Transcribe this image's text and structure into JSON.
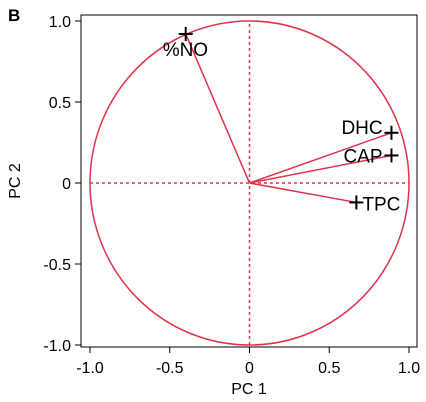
{
  "panel_label": "B",
  "chart_data": {
    "type": "scatter",
    "subtype": "pca-loading-plot",
    "xlabel": "PC 1",
    "ylabel": "PC 2",
    "xlim": [
      -1.0,
      1.0
    ],
    "ylim": [
      -1.0,
      1.0
    ],
    "x_ticks": [
      -1.0,
      -0.5,
      0,
      0.5,
      1.0
    ],
    "x_tick_labels": [
      "-1.0",
      "-0.5",
      "0",
      "0.5",
      "1.0"
    ],
    "y_ticks": [
      -1.0,
      -0.5,
      0,
      0.5,
      1.0
    ],
    "y_tick_labels": [
      "-1.0",
      "-0.5",
      "0",
      "0.5",
      "1.0"
    ],
    "unit_circle": true,
    "zero_reference_lines": "dashed",
    "color": "#e0334b",
    "points": [
      {
        "label": "%NO",
        "x": -0.4,
        "y": 0.92
      },
      {
        "label": "DHC",
        "x": 0.89,
        "y": 0.31
      },
      {
        "label": "CAP",
        "x": 0.89,
        "y": 0.17
      },
      {
        "label": "TPC",
        "x": 0.67,
        "y": -0.12
      }
    ]
  }
}
